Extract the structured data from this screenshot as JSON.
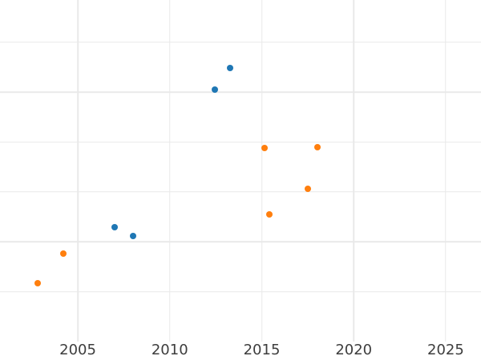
{
  "chart": {
    "background_color": "#ffffff",
    "grid_color": "#e9e9e9",
    "tick_label_color": "#3d3d3d",
    "x_tick_labels": [
      "2005",
      "2010",
      "2015",
      "2020",
      "2025"
    ]
  },
  "chart_data": {
    "type": "scatter",
    "title": "",
    "xlabel": "",
    "ylabel": "",
    "grid": true,
    "legend": false,
    "y_axis_labels_visible": false,
    "xlim": [
      2000.77,
      2026.92
    ],
    "ylim": [
      0,
      6.85
    ],
    "x_ticks": [
      2005,
      2010,
      2015,
      2020,
      2025
    ],
    "y_gridlines": [
      1,
      2,
      3,
      4,
      5,
      6
    ],
    "marker_size_px": 8,
    "series": [
      {
        "name": "blue-series",
        "color": "#1f77b4",
        "points": [
          {
            "x": 2007.0,
            "y": 2.3
          },
          {
            "x": 2008.0,
            "y": 2.12
          },
          {
            "x": 2012.45,
            "y": 5.05
          },
          {
            "x": 2013.3,
            "y": 5.49
          }
        ]
      },
      {
        "name": "orange-series",
        "color": "#ff7f0e",
        "points": [
          {
            "x": 2002.8,
            "y": 1.17
          },
          {
            "x": 2004.2,
            "y": 1.77
          },
          {
            "x": 2015.15,
            "y": 3.88
          },
          {
            "x": 2015.4,
            "y": 2.55
          },
          {
            "x": 2017.5,
            "y": 3.07
          },
          {
            "x": 2018.05,
            "y": 3.9
          }
        ]
      }
    ]
  }
}
